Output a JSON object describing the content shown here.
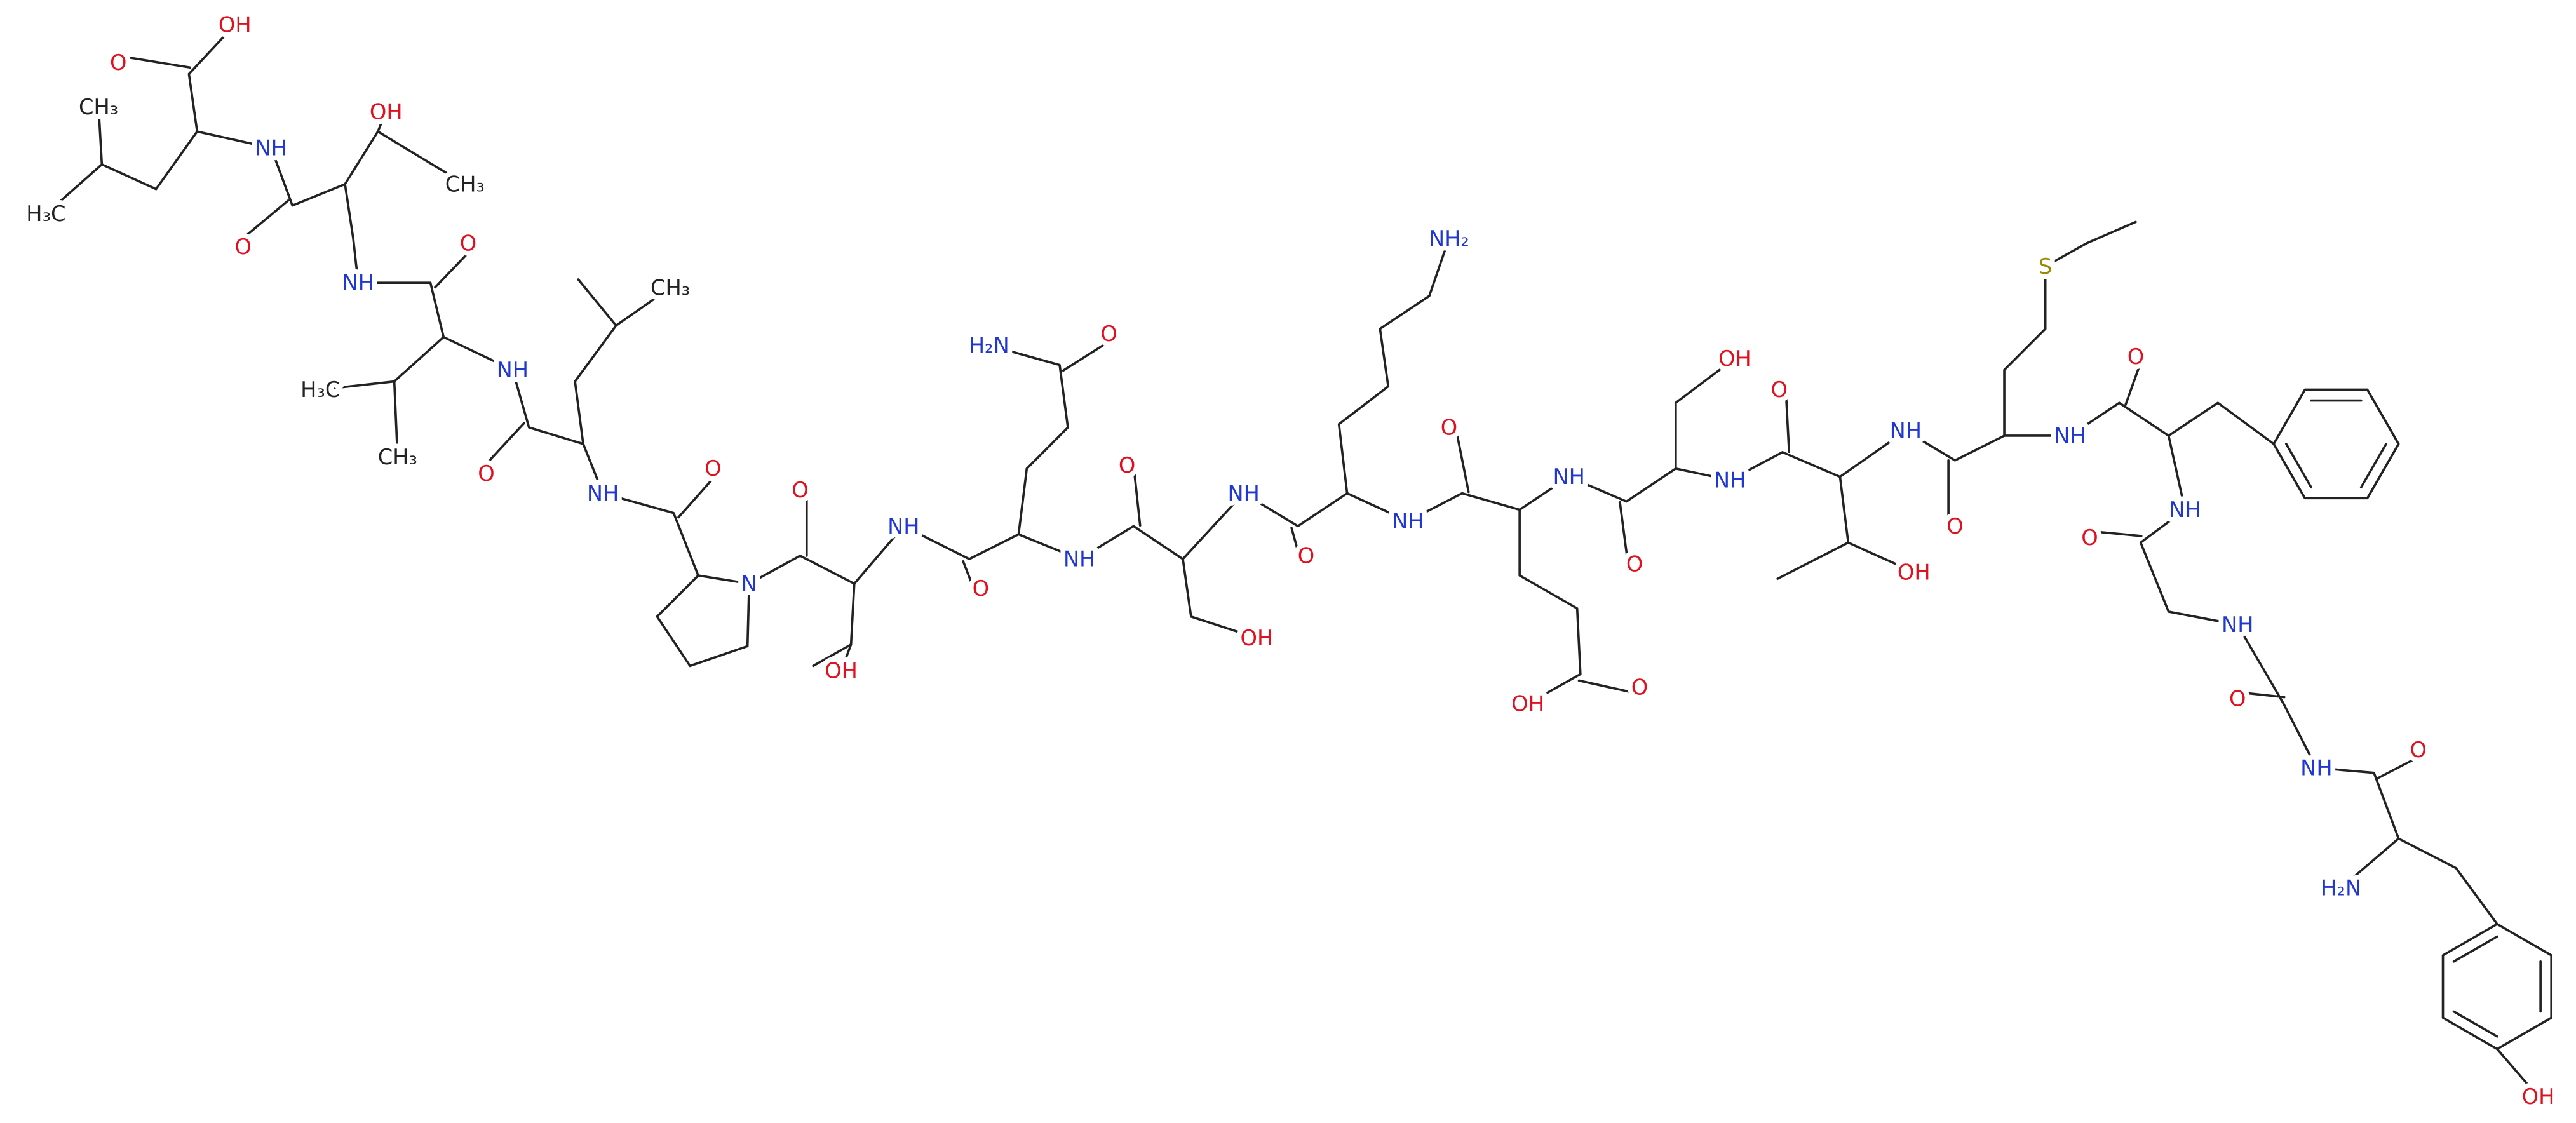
{
  "atom_labels": [
    "OH",
    "O",
    "CH₃",
    "NH",
    "OH",
    "H₃C",
    "CH₃",
    "O",
    "O",
    "NH",
    "CH₃",
    "NH",
    "H₃C",
    "CH₃",
    "O",
    "NH",
    "O",
    "N",
    "O",
    "NH",
    "O",
    "H₂N",
    "O",
    "NH",
    "O",
    "OH",
    "OH",
    "NH",
    "O",
    "NH₂",
    "O",
    "NH",
    "NH",
    "O",
    "OH",
    "O",
    "OH",
    "O",
    "NH",
    "NH",
    "O",
    "OH",
    "S",
    "O",
    "NH",
    "NH",
    "O",
    "NH",
    "O",
    "NH",
    "O",
    "H₂N",
    "OH"
  ]
}
